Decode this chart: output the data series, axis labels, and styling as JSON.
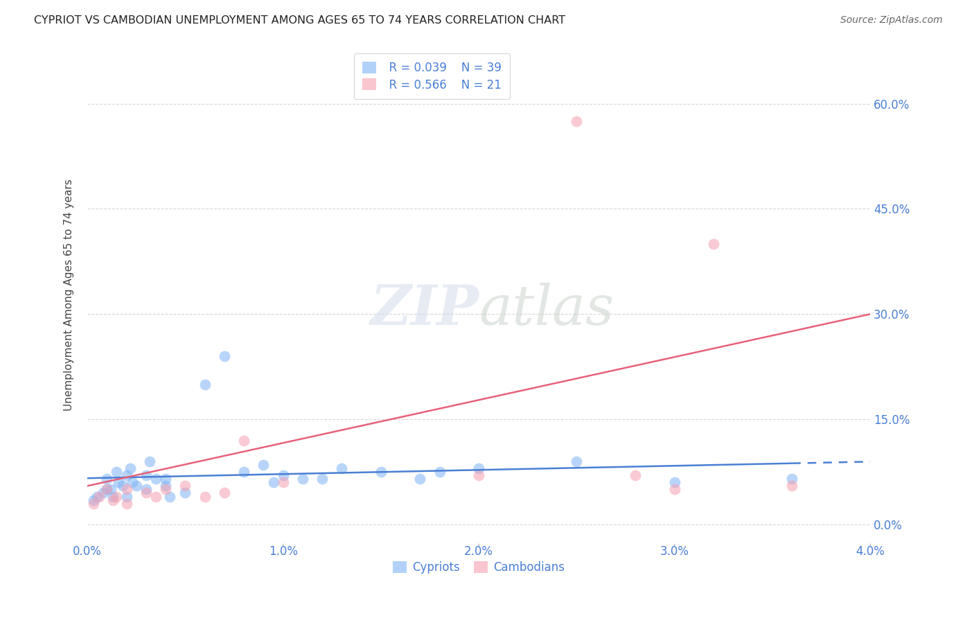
{
  "title": "CYPRIOT VS CAMBODIAN UNEMPLOYMENT AMONG AGES 65 TO 74 YEARS CORRELATION CHART",
  "source": "Source: ZipAtlas.com",
  "ylabel": "Unemployment Among Ages 65 to 74 years",
  "xlim": [
    0.0,
    0.04
  ],
  "ylim": [
    -0.025,
    0.68
  ],
  "xticks": [
    0.0,
    0.01,
    0.02,
    0.03,
    0.04
  ],
  "xtick_labels": [
    "0.0%",
    "1.0%",
    "2.0%",
    "3.0%",
    "4.0%"
  ],
  "yticks": [
    0.0,
    0.15,
    0.3,
    0.45,
    0.6
  ],
  "ytick_labels": [
    "0.0%",
    "15.0%",
    "30.0%",
    "45.0%",
    "60.0%"
  ],
  "legend_R_cypriot": "R = 0.039",
  "legend_N_cypriot": "N = 39",
  "legend_R_cambodian": "R = 0.566",
  "legend_N_cambodian": "N = 21",
  "cypriot_color": "#7fb3f5",
  "cambodian_color": "#f5a0b0",
  "cypriot_line_color": "#4a7fd4",
  "cambodian_line_color": "#e8607a",
  "background_color": "#ffffff",
  "grid_color": "#cccccc",
  "axis_label_color": "#4a7fd4",
  "cypriot_x": [
    0.0003,
    0.0005,
    0.0008,
    0.001,
    0.001,
    0.0012,
    0.0013,
    0.0015,
    0.0016,
    0.0018,
    0.002,
    0.002,
    0.0022,
    0.0023,
    0.0025,
    0.003,
    0.003,
    0.0032,
    0.0035,
    0.004,
    0.004,
    0.0042,
    0.005,
    0.006,
    0.007,
    0.008,
    0.009,
    0.0095,
    0.01,
    0.011,
    0.012,
    0.013,
    0.015,
    0.017,
    0.018,
    0.02,
    0.025,
    0.03,
    0.036
  ],
  "cypriot_y": [
    0.035,
    0.04,
    0.045,
    0.05,
    0.065,
    0.05,
    0.04,
    0.075,
    0.06,
    0.055,
    0.04,
    0.07,
    0.08,
    0.06,
    0.055,
    0.07,
    0.05,
    0.09,
    0.065,
    0.055,
    0.065,
    0.04,
    0.045,
    0.2,
    0.24,
    0.075,
    0.085,
    0.06,
    0.07,
    0.065,
    0.065,
    0.08,
    0.075,
    0.065,
    0.075,
    0.08,
    0.09,
    0.06,
    0.065
  ],
  "cambodian_x": [
    0.0003,
    0.0006,
    0.001,
    0.0013,
    0.0015,
    0.002,
    0.002,
    0.003,
    0.0035,
    0.004,
    0.005,
    0.006,
    0.007,
    0.008,
    0.01,
    0.02,
    0.025,
    0.028,
    0.03,
    0.032,
    0.036
  ],
  "cambodian_y": [
    0.03,
    0.04,
    0.05,
    0.035,
    0.04,
    0.05,
    0.03,
    0.045,
    0.04,
    0.05,
    0.055,
    0.04,
    0.045,
    0.12,
    0.06,
    0.07,
    0.575,
    0.07,
    0.05,
    0.4,
    0.055
  ],
  "cyp_line_x": [
    0.0,
    0.036,
    0.04
  ],
  "cyp_line_solid_end": 0.036,
  "cam_line_x0": 0.0,
  "cam_line_x1": 0.04,
  "cam_line_y0": 0.055,
  "cam_line_y1": 0.3
}
